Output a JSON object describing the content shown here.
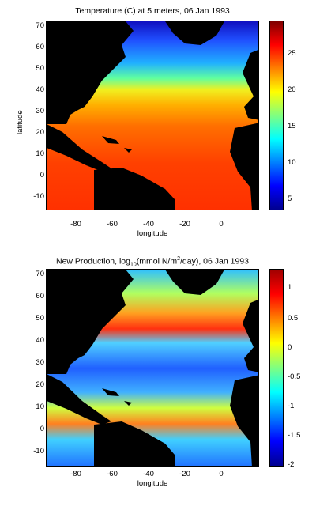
{
  "map_top": {
    "title": "Temperature (C) at 5 meters, 06 Jan 1993",
    "ylabel": "latitude",
    "xlabel": "longitude",
    "yticks": [
      "70",
      "60",
      "50",
      "40",
      "30",
      "20",
      "10",
      "0",
      "-10"
    ],
    "xticks": [
      "-80",
      "-60",
      "-40",
      "-20",
      "0"
    ],
    "colorbar_ticks": [
      "25",
      "20",
      "15",
      "10",
      "5"
    ],
    "colorbar_range": [
      2,
      30
    ],
    "colormap": "jet"
  },
  "map_bottom": {
    "title_prefix": "New Production, log",
    "title_sub": "10",
    "title_mid": "(mmol N/m",
    "title_sup": "2",
    "title_suffix": "/day), 06 Jan 1993",
    "ylabel": "",
    "xlabel": "longitude",
    "yticks": [
      "70",
      "60",
      "50",
      "40",
      "30",
      "20",
      "10",
      "0",
      "-10"
    ],
    "xticks": [
      "-80",
      "-60",
      "-40",
      "-20",
      "0"
    ],
    "colorbar_ticks": [
      "1",
      "0.5",
      "0",
      "-0.5",
      "-1",
      "-1.5",
      "-2"
    ],
    "colorbar_range": [
      -2,
      1.3
    ],
    "colormap": "jet"
  },
  "colors": {
    "land": "#000000",
    "background": "#ffffff"
  }
}
